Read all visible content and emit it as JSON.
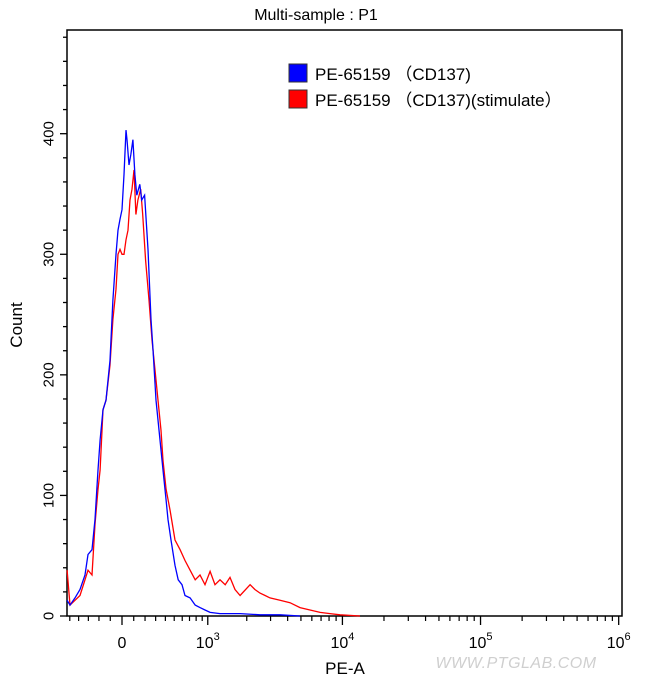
{
  "chart_data": {
    "type": "line",
    "title": "Multi-sample : P1",
    "xlabel": "PE-A",
    "ylabel": "Count",
    "x_scale": "biexponential",
    "xlim": [
      -530,
      1000000
    ],
    "ylim": [
      0,
      486
    ],
    "x_ticks": [
      {
        "value": 0,
        "label": "0",
        "exp": ""
      },
      {
        "value": 1000,
        "label": "10",
        "exp": "3"
      },
      {
        "value": 10000,
        "label": "10",
        "exp": "4"
      },
      {
        "value": 100000,
        "label": "10",
        "exp": "5"
      },
      {
        "value": 1000000,
        "label": "10",
        "exp": "6"
      }
    ],
    "y_ticks": [
      {
        "value": 0,
        "label": "0"
      },
      {
        "value": 100,
        "label": "100"
      },
      {
        "value": 200,
        "label": "200"
      },
      {
        "value": 300,
        "label": "300"
      },
      {
        "value": 400,
        "label": "400"
      }
    ],
    "grid": false,
    "legend_position": "top-right",
    "series": [
      {
        "name": "PE-65159 （CD137)",
        "color": "#0000ff",
        "points": [
          [
            -533,
            13
          ],
          [
            -497,
            9
          ],
          [
            -440,
            15
          ],
          [
            -385,
            22
          ],
          [
            -334,
            34
          ],
          [
            -304,
            51
          ],
          [
            -265,
            55
          ],
          [
            -236,
            80
          ],
          [
            -209,
            121
          ],
          [
            -190,
            146
          ],
          [
            -164,
            171
          ],
          [
            -137,
            179
          ],
          [
            -102,
            212
          ],
          [
            -77,
            262
          ],
          [
            -51,
            300
          ],
          [
            -34,
            320
          ],
          [
            -17,
            329
          ],
          [
            0,
            337
          ],
          [
            17,
            366
          ],
          [
            34,
            403
          ],
          [
            42,
            395
          ],
          [
            59,
            374
          ],
          [
            76,
            383
          ],
          [
            93,
            395
          ],
          [
            110,
            366
          ],
          [
            127,
            349
          ],
          [
            153,
            358
          ],
          [
            170,
            345
          ],
          [
            196,
            349
          ],
          [
            227,
            304
          ],
          [
            255,
            246
          ],
          [
            274,
            221
          ],
          [
            304,
            179
          ],
          [
            344,
            146
          ],
          [
            375,
            121
          ],
          [
            408,
            96
          ],
          [
            429,
            80
          ],
          [
            463,
            63
          ],
          [
            510,
            42
          ],
          [
            548,
            30
          ],
          [
            597,
            26
          ],
          [
            637,
            17
          ],
          [
            708,
            15
          ],
          [
            786,
            9
          ],
          [
            863,
            7
          ],
          [
            950,
            5
          ],
          [
            1044,
            3
          ],
          [
            1250,
            2
          ],
          [
            1783,
            2
          ],
          [
            2510,
            1
          ],
          [
            3515,
            1
          ],
          [
            4923,
            0
          ]
        ]
      },
      {
        "name": "PE-65159 （CD137)(stimulate）",
        "color": "#ff0000",
        "points": [
          [
            -533,
            38
          ],
          [
            -497,
            9
          ],
          [
            -440,
            13
          ],
          [
            -385,
            17
          ],
          [
            -334,
            30
          ],
          [
            -304,
            38
          ],
          [
            -265,
            34
          ],
          [
            -236,
            76
          ],
          [
            -209,
            105
          ],
          [
            -190,
            121
          ],
          [
            -164,
            171
          ],
          [
            -137,
            179
          ],
          [
            -102,
            208
          ],
          [
            -77,
            246
          ],
          [
            -51,
            271
          ],
          [
            -34,
            300
          ],
          [
            -17,
            304
          ],
          [
            0,
            300
          ],
          [
            17,
            300
          ],
          [
            34,
            312
          ],
          [
            51,
            320
          ],
          [
            68,
            345
          ],
          [
            85,
            354
          ],
          [
            102,
            370
          ],
          [
            119,
            333
          ],
          [
            136,
            345
          ],
          [
            161,
            354
          ],
          [
            179,
            333
          ],
          [
            205,
            295
          ],
          [
            236,
            262
          ],
          [
            265,
            229
          ],
          [
            294,
            204
          ],
          [
            323,
            179
          ],
          [
            354,
            154
          ],
          [
            375,
            129
          ],
          [
            408,
            105
          ],
          [
            451,
            88
          ],
          [
            510,
            63
          ],
          [
            573,
            55
          ],
          [
            637,
            46
          ],
          [
            708,
            38
          ],
          [
            786,
            30
          ],
          [
            863,
            34
          ],
          [
            950,
            26
          ],
          [
            1044,
            37
          ],
          [
            1143,
            26
          ],
          [
            1250,
            30
          ],
          [
            1372,
            26
          ],
          [
            1494,
            32
          ],
          [
            1631,
            22
          ],
          [
            1783,
            17
          ],
          [
            2118,
            26
          ],
          [
            2301,
            22
          ],
          [
            2510,
            19
          ],
          [
            2733,
            17
          ],
          [
            2972,
            15
          ],
          [
            3515,
            13
          ],
          [
            4160,
            11
          ],
          [
            4923,
            7
          ],
          [
            5817,
            5
          ],
          [
            6883,
            3
          ],
          [
            8128,
            2
          ],
          [
            9601,
            1
          ],
          [
            13411,
            0
          ]
        ]
      }
    ],
    "watermark": "WWW.PTGLAB.COM"
  }
}
